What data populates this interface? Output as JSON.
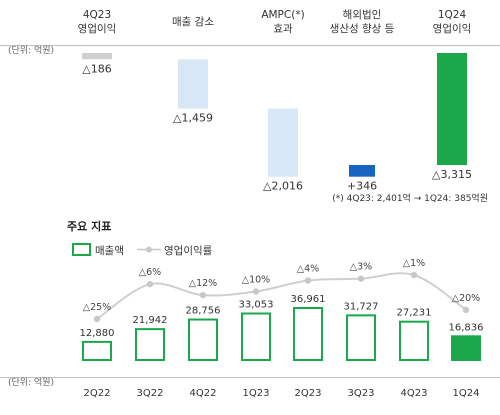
{
  "unit_label": "(단위: 억원)",
  "waterfall": {
    "type": "bar",
    "categories": [
      "4Q23 영업이익",
      "매출 감소",
      "AMPC(*) 효과",
      "해외법인 생산성 향상 등",
      "1Q24 영업이익"
    ],
    "header_lines": [
      [
        "4Q23",
        "영업이익"
      ],
      [
        "매출 감소"
      ],
      [
        "AMPC(*)",
        "효과"
      ],
      [
        "해외법인",
        "생산성 향상 등"
      ],
      [
        "1Q24",
        "영업이익"
      ]
    ],
    "values": [
      -186,
      -1459,
      -2016,
      346,
      -3315
    ],
    "value_labels": [
      "△186",
      "△1,459",
      "△2,016",
      "+346",
      "△3,315"
    ],
    "colors": [
      "#cfcfcf",
      "#d7e7f5",
      "#d7e7f5",
      "#1565c0",
      "#1aa84a"
    ],
    "footnote": "(*) 4Q23: 2,401억 → 1Q24: 385억원"
  },
  "section_title": "주요 지표",
  "chart_data": {
    "type": "bar",
    "categories": [
      "2Q22",
      "3Q22",
      "4Q22",
      "1Q23",
      "2Q23",
      "3Q23",
      "4Q23",
      "1Q24"
    ],
    "series": [
      {
        "name": "매출액",
        "type": "bar",
        "values": [
          12880,
          21942,
          28756,
          33053,
          36961,
          31727,
          27231,
          16836
        ],
        "labels": [
          "12,880",
          "21,942",
          "28,756",
          "33,053",
          "36,961",
          "31,727",
          "27,231",
          "16,836"
        ],
        "color": "#1aa84a"
      },
      {
        "name": "영업이익률",
        "type": "line",
        "values": [
          -25,
          -6,
          -12,
          -10,
          -4,
          -3,
          -1,
          -20
        ],
        "labels": [
          "△25%",
          "△6%",
          "△12%",
          "△10%",
          "△4%",
          "△3%",
          "△1%",
          "△20%"
        ],
        "color": "#c8c8c8"
      }
    ],
    "ylabel": "(단위: 억원)",
    "ylim": [
      0,
      40000
    ],
    "legend_position": "top-left",
    "grid": false,
    "highlight_index": 7
  }
}
